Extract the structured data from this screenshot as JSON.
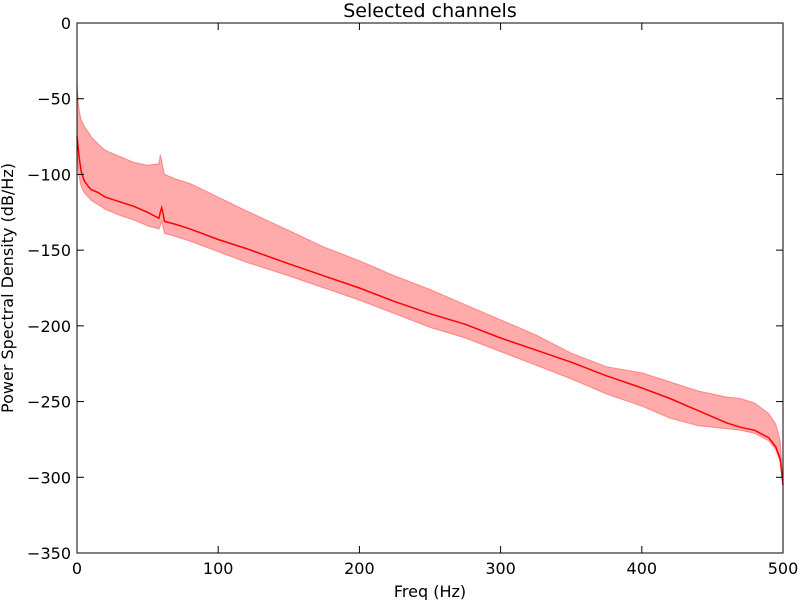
{
  "chart_data": {
    "type": "area",
    "title": "Selected channels",
    "xlabel": "Freq (Hz)",
    "ylabel": "Power Spectral Density (dB/Hz)",
    "xlim": [
      0,
      500
    ],
    "ylim": [
      -350,
      0
    ],
    "xticks": [
      0,
      100,
      200,
      300,
      400,
      500
    ],
    "yticks": [
      0,
      -50,
      -100,
      -150,
      -200,
      -250,
      -300,
      -350
    ],
    "grid": false,
    "legend": "none",
    "colors": {
      "line": "#ff0000",
      "band": "#ff0000",
      "band_opacity": 0.33
    },
    "x": [
      0,
      1,
      2,
      3,
      5,
      8,
      10,
      15,
      20,
      30,
      40,
      50,
      58,
      59,
      60,
      61,
      62,
      70,
      80,
      100,
      120,
      150,
      175,
      200,
      225,
      250,
      275,
      300,
      325,
      350,
      375,
      400,
      420,
      440,
      460,
      470,
      480,
      490,
      495,
      498,
      500
    ],
    "series": [
      {
        "role": "mean",
        "values": [
          -75,
          -84,
          -92,
          -98,
          -104,
          -108,
          -110,
          -112,
          -115,
          -118,
          -121,
          -125,
          -129,
          -125,
          -122,
          -126,
          -131,
          -133,
          -136,
          -143,
          -149,
          -159,
          -167,
          -175,
          -184,
          -192,
          -199,
          -208,
          -216,
          -224,
          -233,
          -241,
          -248,
          -256,
          -264,
          -267,
          -269,
          -274,
          -280,
          -288,
          -305
        ]
      },
      {
        "role": "upper",
        "values": [
          -40,
          -53,
          -60,
          -64,
          -68,
          -72,
          -75,
          -80,
          -84,
          -88,
          -92,
          -94,
          -93,
          -87,
          -91,
          -96,
          -100,
          -103,
          -106,
          -115,
          -124,
          -137,
          -148,
          -157,
          -167,
          -176,
          -186,
          -196,
          -206,
          -218,
          -227,
          -231,
          -237,
          -243,
          -247,
          -248,
          -251,
          -258,
          -265,
          -276,
          -305
        ]
      },
      {
        "role": "lower",
        "values": [
          -85,
          -97,
          -104,
          -108,
          -112,
          -115,
          -117,
          -120,
          -123,
          -127,
          -130,
          -134,
          -136,
          -134,
          -131,
          -135,
          -139,
          -141,
          -144,
          -151,
          -158,
          -167,
          -175,
          -183,
          -192,
          -201,
          -208,
          -217,
          -226,
          -235,
          -245,
          -253,
          -261,
          -266,
          -268,
          -269,
          -271,
          -276,
          -282,
          -290,
          -305
        ]
      }
    ]
  }
}
